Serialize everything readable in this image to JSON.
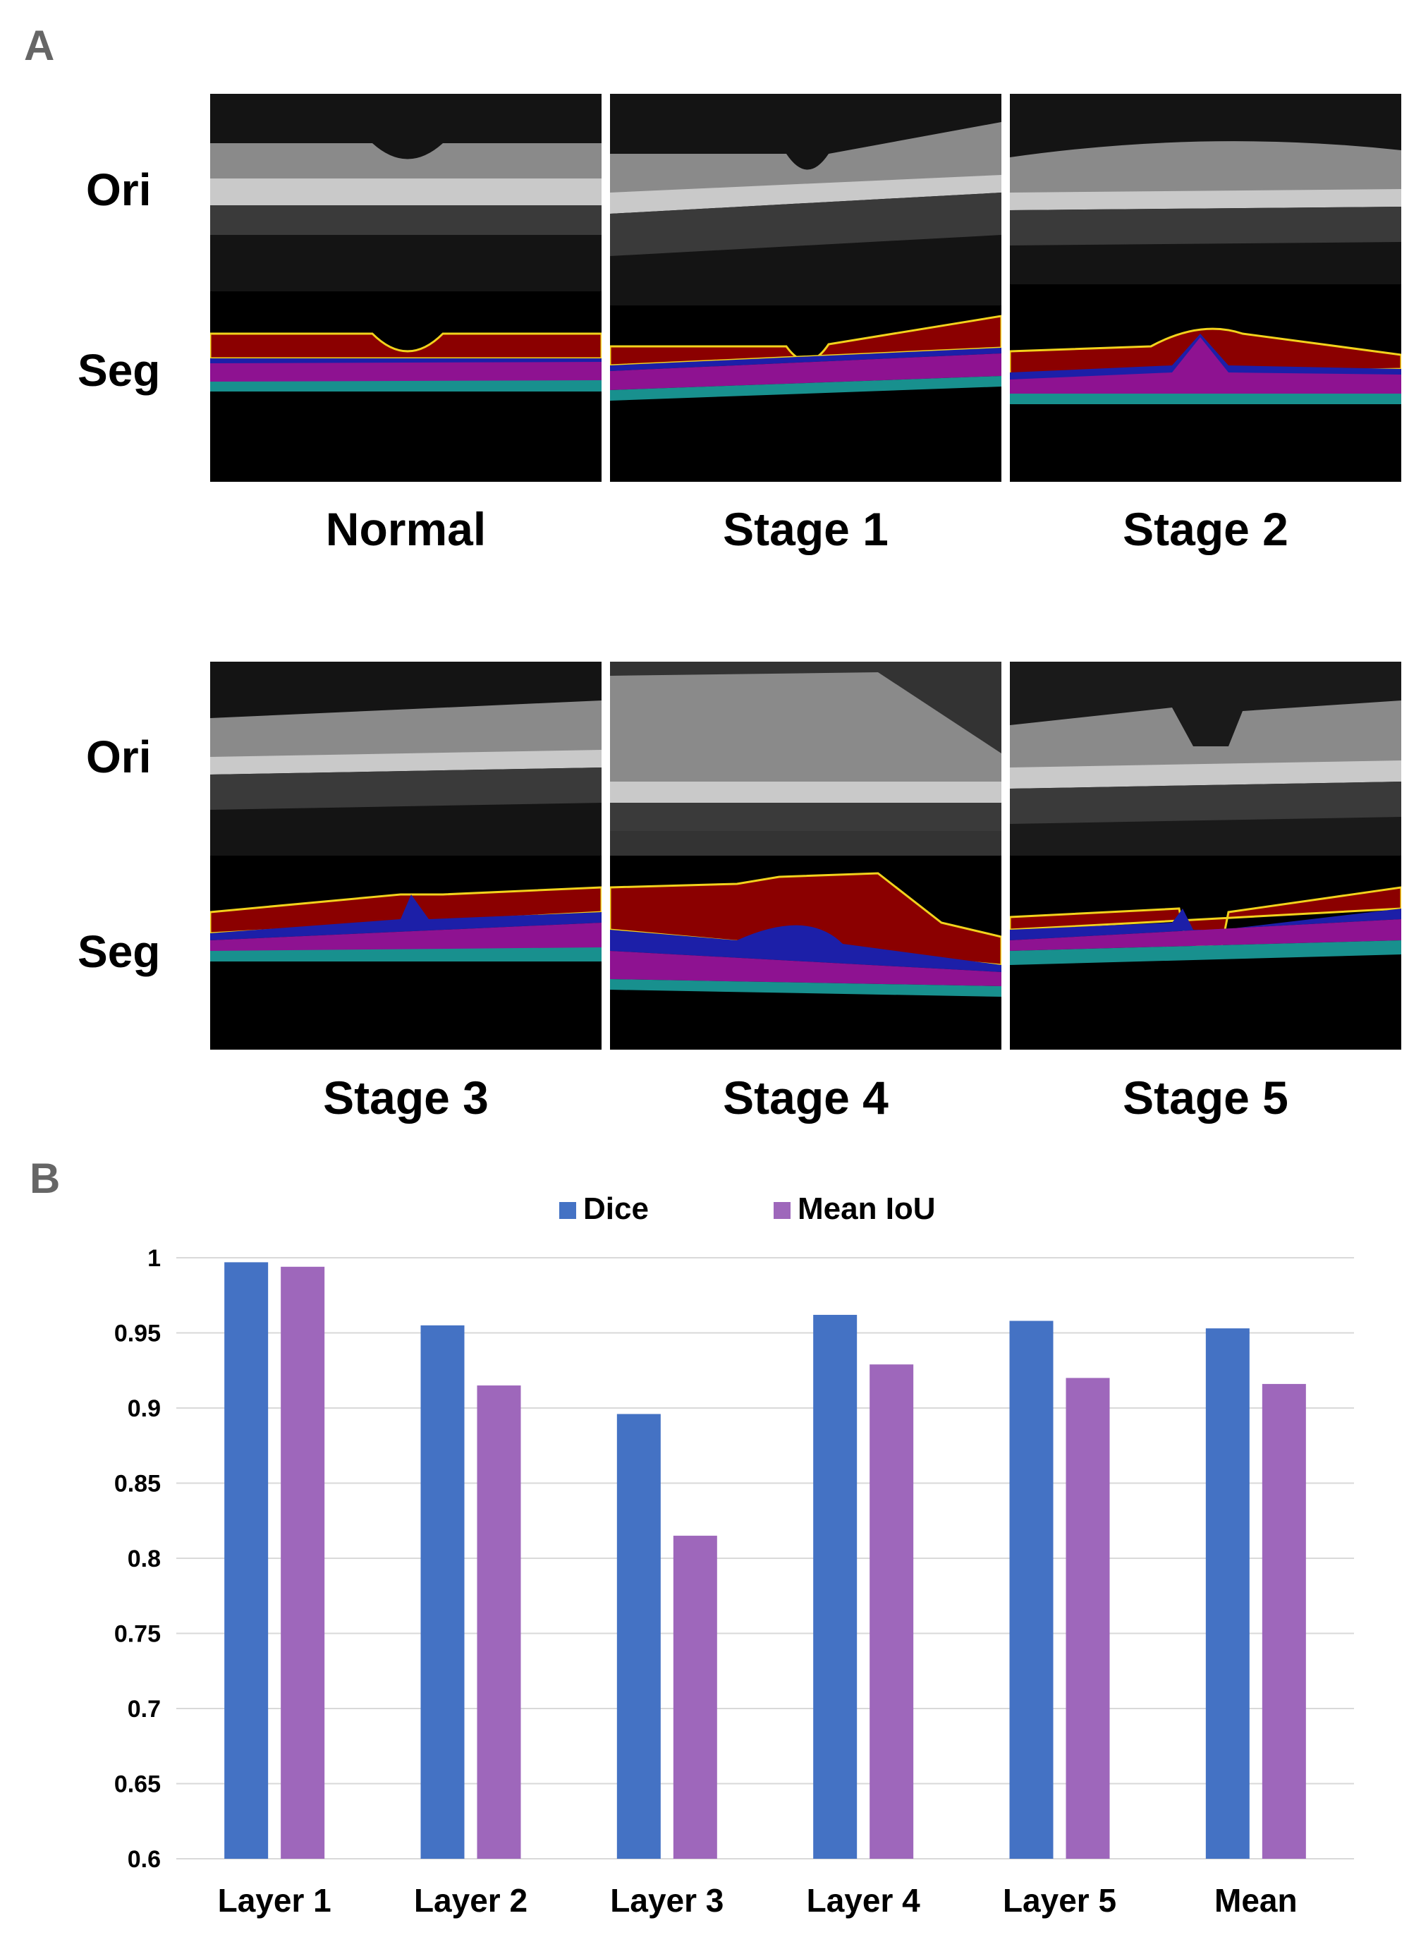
{
  "panel_a": {
    "letter": "A",
    "row_labels": {
      "original": "Ori",
      "segmented": "Seg"
    },
    "stages": [
      "Normal",
      "Stage 1",
      "Stage 2",
      "Stage 3",
      "Stage 4",
      "Stage 5"
    ]
  },
  "colors": {
    "layer_top": "#8b0000",
    "layer_boundary": "#f2d21c",
    "layer_blue": "#1c1fa8",
    "layer_magenta": "#8e1291",
    "layer_teal": "#18908e",
    "dice": "#4472c4",
    "iou": "#9e67bb",
    "grid": "#d9d9d9"
  },
  "panel_b": {
    "letter": "B"
  },
  "chart_data": {
    "type": "bar",
    "categories": [
      "Layer 1",
      "Layer 2",
      "Layer 3",
      "Layer 4",
      "Layer 5",
      "Mean"
    ],
    "series": [
      {
        "name": "Dice",
        "values": [
          0.997,
          0.955,
          0.896,
          0.962,
          0.958,
          0.953
        ]
      },
      {
        "name": "Mean IoU",
        "values": [
          0.994,
          0.915,
          0.815,
          0.929,
          0.92,
          0.916
        ]
      }
    ],
    "yticks": [
      "0.6",
      "0.65",
      "0.7",
      "0.75",
      "0.8",
      "0.85",
      "0.9",
      "0.95",
      "1"
    ],
    "ylim": [
      0.6,
      1.0
    ],
    "grid": true,
    "legend": "top-center",
    "title": "",
    "xlabel": "",
    "ylabel": ""
  }
}
